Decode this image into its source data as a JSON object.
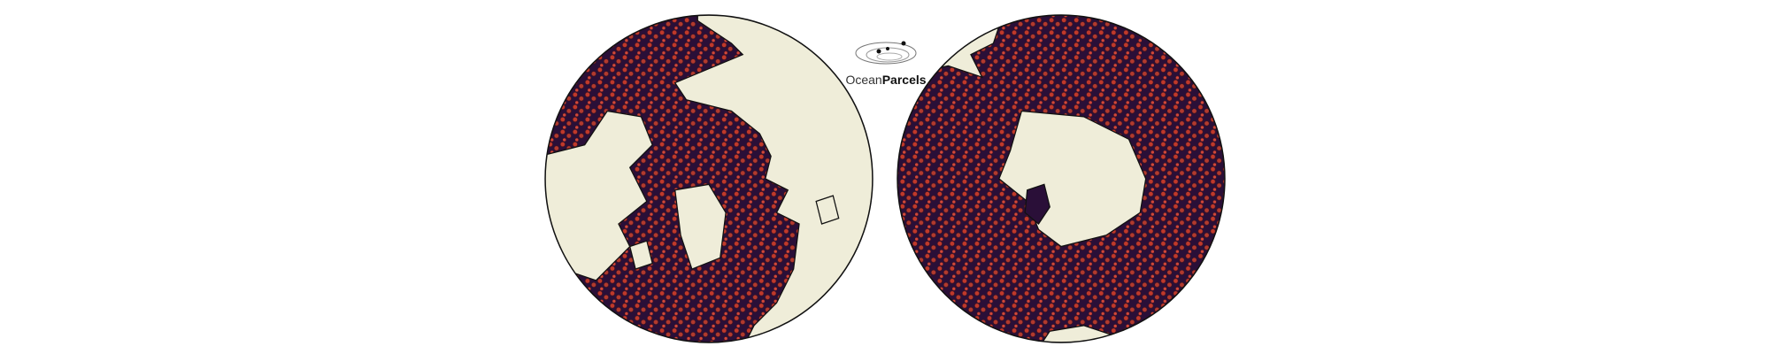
{
  "logo": {
    "text_light": "Ocean",
    "text_bold": "Parcels"
  }
}
